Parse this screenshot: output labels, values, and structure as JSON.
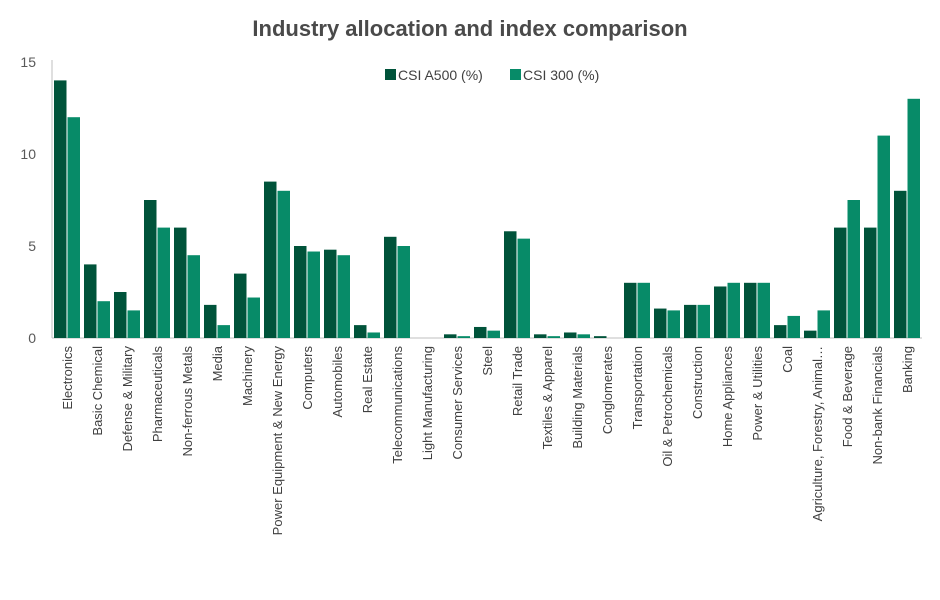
{
  "chart_data": {
    "type": "bar",
    "title": "Industry allocation and index comparison",
    "xlabel": "",
    "ylabel": "",
    "ylim": [
      0,
      15
    ],
    "yticks": [
      0,
      5,
      10,
      15
    ],
    "grid": false,
    "legend_position": "top-center",
    "categories": [
      "Electronics",
      "Basic Chemical",
      "Defense & Military",
      "Pharmaceuticals",
      "Non-ferrous Metals",
      "Media",
      "Machinery",
      "Power Equipment & New Energy",
      "Computers",
      "Automobiles",
      "Real Estate",
      "Telecommunications",
      "Light Manufacturing",
      "Consumer Services",
      "Steel",
      "Retail Trade",
      "Textiles & Apparel",
      "Building Materials",
      "Conglomerates",
      "Transportation",
      "Oil & Petrochemicals",
      "Construction",
      "Home Appliances",
      "Power & Utilities",
      "Coal",
      "Agriculture, Forestry, Animal…",
      "Food & Beverage",
      "Non-bank Financials",
      "Banking"
    ],
    "series": [
      {
        "name": "CSI A500 (%)",
        "color": "#00533a",
        "values": [
          14,
          4,
          2.5,
          7.5,
          6,
          1.8,
          3.5,
          8.5,
          5,
          4.8,
          0.7,
          5.5,
          0,
          0.2,
          0.6,
          5.8,
          0.2,
          0.3,
          0.1,
          3,
          1.6,
          1.8,
          2.8,
          3,
          0.7,
          0.4,
          6,
          6,
          8
        ]
      },
      {
        "name": "CSI 300 (%)",
        "color": "#078b68",
        "values": [
          12,
          2,
          1.5,
          6,
          4.5,
          0.7,
          2.2,
          8,
          4.7,
          4.5,
          0.3,
          5,
          0,
          0.1,
          0.4,
          5.4,
          0.1,
          0.2,
          0,
          3,
          1.5,
          1.8,
          3,
          3,
          1.2,
          1.5,
          7.5,
          11,
          13
        ]
      }
    ]
  }
}
